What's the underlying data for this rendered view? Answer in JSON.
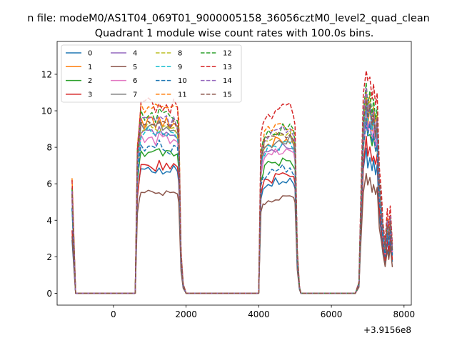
{
  "figure": {
    "suptitle": "n file: modeM0/AS1T04_069T01_9000005158_36056cztM0_level2_quad_clean",
    "title": "Quadrant 1 module wise count rates with 100.0s bins."
  },
  "chart_data": {
    "type": "line",
    "xlim": [
      -1550,
      8200
    ],
    "ylim": [
      -0.65,
      13.8
    ],
    "x_ticks": [
      0,
      2000,
      4000,
      6000,
      8000
    ],
    "x_tick_labels": [
      "0",
      "2000",
      "4000",
      "6000",
      "8000"
    ],
    "x_offset_text": "+3.9156e8",
    "y_ticks": [
      0,
      2,
      4,
      6,
      8,
      10,
      12
    ],
    "y_tick_labels": [
      "0",
      "2",
      "4",
      "6",
      "8",
      "10",
      "12"
    ],
    "xlabel": "",
    "ylabel": "",
    "grid": false,
    "legend_position": "upper-left",
    "legend_columns": 4,
    "profile_x": [
      -1140,
      -1040,
      -940,
      -840,
      -740,
      -640,
      -540,
      -440,
      -340,
      -240,
      -140,
      -40,
      60,
      160,
      260,
      360,
      460,
      560,
      600,
      660,
      720,
      760,
      860,
      960,
      1060,
      1160,
      1260,
      1360,
      1460,
      1560,
      1660,
      1760,
      1800,
      1860,
      1920,
      2000,
      2060,
      2160,
      2260,
      2360,
      2460,
      2560,
      2660,
      2760,
      2860,
      2960,
      3060,
      3160,
      3260,
      3360,
      3460,
      3560,
      3660,
      3760,
      3860,
      3960,
      4000,
      4060,
      4120,
      4160,
      4260,
      4360,
      4460,
      4560,
      4660,
      4760,
      4860,
      4960,
      5000,
      5060,
      5120,
      5160,
      5260,
      5360,
      5460,
      5560,
      5660,
      5760,
      5860,
      5960,
      6060,
      6160,
      6260,
      6360,
      6460,
      6560,
      6660,
      6760,
      6800,
      6880,
      6960,
      7000,
      7060,
      7120,
      7160,
      7220,
      7260,
      7320,
      7380,
      7420,
      7480,
      7540,
      7580,
      7620,
      7680
    ],
    "profile_y": [
      1,
      0,
      0,
      0,
      0,
      0,
      0,
      0,
      0,
      0,
      0,
      0,
      0,
      0,
      0,
      0,
      0,
      0,
      0,
      0.78,
      0.93,
      1,
      0.99,
      1.02,
      1,
      0.98,
      1.01,
      0.99,
      1,
      0.98,
      1,
      0.97,
      0.9,
      0.22,
      0.05,
      0,
      0,
      0,
      0,
      0,
      0,
      0,
      0,
      0,
      0,
      0,
      0,
      0,
      0,
      0,
      0,
      0,
      0,
      0,
      0,
      0,
      0,
      0.82,
      0.9,
      0.92,
      0.95,
      0.94,
      0.97,
      0.96,
      0.98,
      0.97,
      0.98,
      0.95,
      0.9,
      0.24,
      0.04,
      0,
      0,
      0,
      0,
      0,
      0,
      0,
      0,
      0,
      0,
      0,
      0,
      0,
      0,
      0,
      0,
      0.05,
      0.35,
      0.85,
      1,
      0.9,
      0.95,
      0.85,
      0.92,
      0.82,
      0.88,
      0.55,
      0.42,
      0.32,
      0.22,
      0.36,
      0.28,
      0.38,
      0.22
    ],
    "series": [
      {
        "name": "0",
        "color": "#1f77b4",
        "dash": "solid",
        "levels": [
          3.0,
          6.8,
          6.4,
          7.8
        ],
        "jitter": 0.25
      },
      {
        "name": "1",
        "color": "#ff7f0e",
        "dash": "solid",
        "levels": [
          5.4,
          9.4,
          8.6,
          10.4
        ],
        "jitter": 0.25
      },
      {
        "name": "2",
        "color": "#2ca02c",
        "dash": "solid",
        "levels": [
          4.8,
          7.8,
          7.4,
          9.4
        ],
        "jitter": 0.3
      },
      {
        "name": "3",
        "color": "#d62728",
        "dash": "solid",
        "levels": [
          3.5,
          7.0,
          6.6,
          8.4
        ],
        "jitter": 0.25
      },
      {
        "name": "4",
        "color": "#9467bd",
        "dash": "solid",
        "levels": [
          5.2,
          8.8,
          8.2,
          10.0
        ],
        "jitter": 0.25
      },
      {
        "name": "5",
        "color": "#8c564b",
        "dash": "solid",
        "levels": [
          3.2,
          5.5,
          5.4,
          6.6
        ],
        "jitter": 0.2
      },
      {
        "name": "6",
        "color": "#e377c2",
        "dash": "solid",
        "levels": [
          5.0,
          8.5,
          8.0,
          9.6
        ],
        "jitter": 0.25
      },
      {
        "name": "7",
        "color": "#7f7f7f",
        "dash": "solid",
        "levels": [
          5.6,
          9.2,
          8.6,
          10.6
        ],
        "jitter": 0.25
      },
      {
        "name": "8",
        "color": "#bcbd22",
        "dash": "dashed",
        "levels": [
          5.8,
          9.0,
          8.9,
          10.8
        ],
        "jitter": 0.25
      },
      {
        "name": "9",
        "color": "#17becf",
        "dash": "dashed",
        "levels": [
          5.5,
          8.8,
          8.4,
          10.5
        ],
        "jitter": 0.25
      },
      {
        "name": "10",
        "color": "#1f77b4",
        "dash": "dashed",
        "levels": [
          4.6,
          8.0,
          7.0,
          9.5
        ],
        "jitter": 0.35
      },
      {
        "name": "11",
        "color": "#ff7f0e",
        "dash": "dashed",
        "levels": [
          6.2,
          10.3,
          9.4,
          11.3
        ],
        "jitter": 0.25
      },
      {
        "name": "12",
        "color": "#2ca02c",
        "dash": "dashed",
        "levels": [
          5.8,
          9.8,
          9.2,
          11.4
        ],
        "jitter": 0.25
      },
      {
        "name": "13",
        "color": "#d62728",
        "dash": "dashed",
        "levels": [
          6.3,
          10.4,
          10.4,
          12.6
        ],
        "jitter": 0.3
      },
      {
        "name": "14",
        "color": "#9467bd",
        "dash": "dashed",
        "levels": [
          5.6,
          9.6,
          9.2,
          11.2
        ],
        "jitter": 0.25
      },
      {
        "name": "15",
        "color": "#8c564b",
        "dash": "dashed",
        "levels": [
          5.4,
          9.3,
          9.0,
          10.6
        ],
        "jitter": 0.25
      }
    ]
  }
}
